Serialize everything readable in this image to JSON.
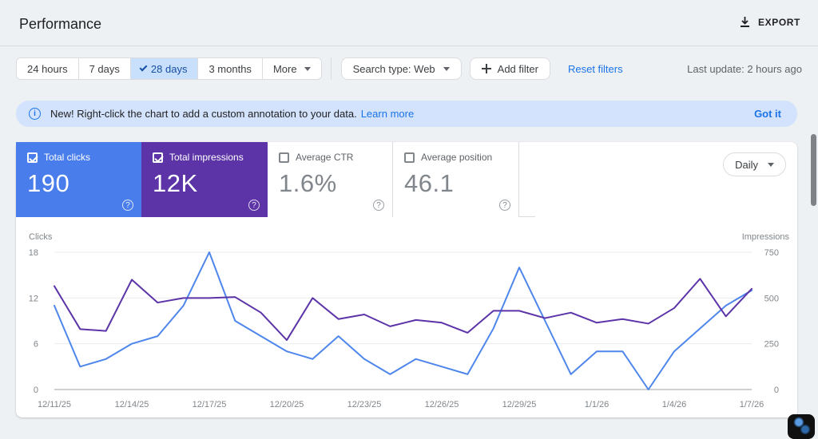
{
  "header": {
    "title": "Performance",
    "export_label": "EXPORT"
  },
  "filters": {
    "date_ranges": [
      {
        "label": "24 hours",
        "selected": false
      },
      {
        "label": "7 days",
        "selected": false
      },
      {
        "label": "28 days",
        "selected": true
      },
      {
        "label": "3 months",
        "selected": false
      },
      {
        "label": "More",
        "selected": false,
        "has_dropdown": true
      }
    ],
    "search_type_label": "Search type: Web",
    "add_filter_label": "Add filter",
    "reset_filters_label": "Reset filters",
    "last_update": "Last update: 2 hours ago"
  },
  "banner": {
    "text": "New! Right-click the chart to add a custom annotation to your data.",
    "learn_more_label": "Learn more",
    "got_it_label": "Got it"
  },
  "metrics": {
    "cards": [
      {
        "label": "Total clicks",
        "value": "190",
        "checked": true,
        "bg": "#4a7dec",
        "fg": "#ffffff"
      },
      {
        "label": "Total impressions",
        "value": "12K",
        "checked": true,
        "bg": "#5c34a8",
        "fg": "#ffffff"
      },
      {
        "label": "Average CTR",
        "value": "1.6%",
        "checked": false,
        "bg": "#ffffff",
        "fg": "#80868b"
      },
      {
        "label": "Average position",
        "value": "46.1",
        "checked": false,
        "bg": "#ffffff",
        "fg": "#80868b"
      }
    ],
    "granularity": "Daily"
  },
  "chart_data": {
    "type": "line",
    "num_points": 28,
    "x_labels_shown": [
      "12/11/25",
      "12/14/25",
      "12/17/25",
      "12/20/25",
      "12/23/25",
      "12/26/25",
      "12/29/25",
      "1/1/26",
      "1/4/26",
      "1/7/26"
    ],
    "x_tick_days": [
      0,
      3,
      6,
      9,
      12,
      15,
      18,
      21,
      24,
      27
    ],
    "left_axis": {
      "label": "Clicks",
      "ticks": [
        18,
        12,
        6,
        0
      ],
      "range": [
        0,
        18
      ]
    },
    "right_axis": {
      "label": "Impressions",
      "ticks": [
        750,
        500,
        250,
        0
      ],
      "range": [
        0,
        750
      ]
    },
    "grid": "horizontal",
    "legend": "none",
    "series": [
      {
        "name": "Total clicks",
        "axis": "left",
        "color": "#4e86ec",
        "values": [
          11,
          3,
          4,
          6,
          7,
          11,
          18,
          9,
          7,
          5,
          4,
          7,
          4,
          2,
          4,
          3,
          2,
          8,
          16,
          9,
          2,
          5,
          5,
          0,
          5,
          8,
          11,
          13
        ]
      },
      {
        "name": "Total impressions",
        "axis": "right",
        "color": "#5c34a8",
        "values": [
          565,
          330,
          320,
          600,
          475,
          500,
          500,
          505,
          420,
          270,
          500,
          385,
          410,
          345,
          380,
          365,
          310,
          430,
          430,
          390,
          420,
          365,
          385,
          360,
          445,
          605,
          400,
          550
        ]
      }
    ]
  }
}
